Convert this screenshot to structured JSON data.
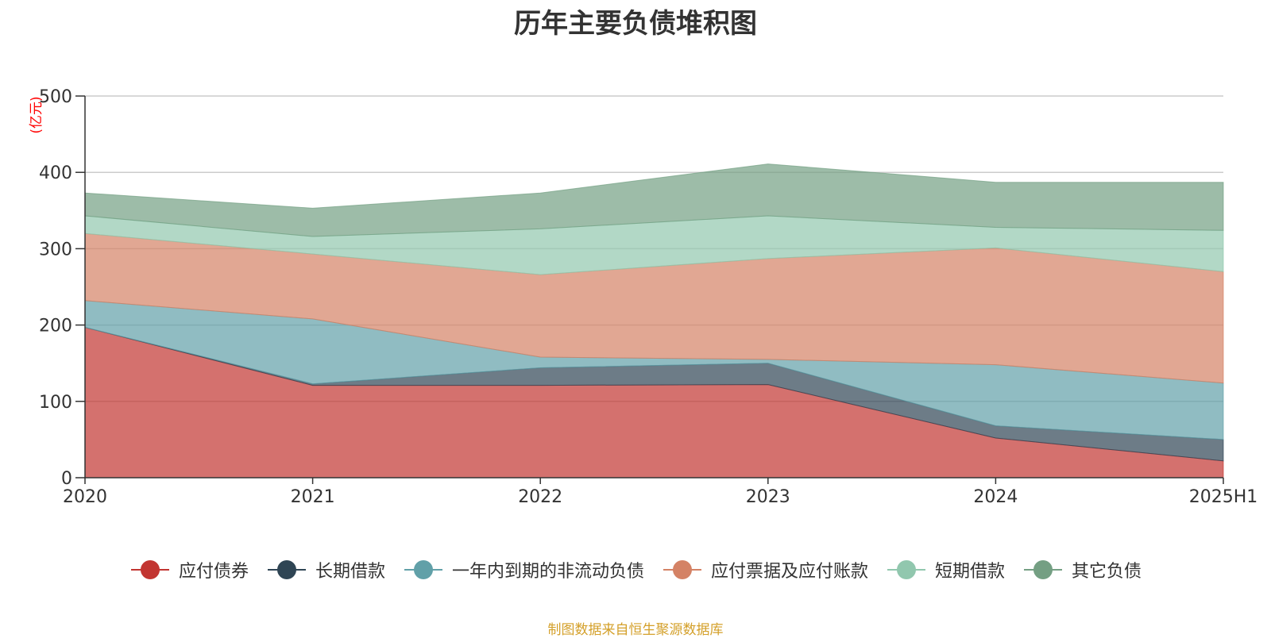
{
  "title": "历年主要负债堆积图",
  "unit_label": "(亿元)",
  "source_note": "制图数据来自恒生聚源数据库",
  "chart_data": {
    "type": "area",
    "stacked": true,
    "title": "历年主要负债堆积图",
    "ylabel": "(亿元)",
    "categories": [
      "2020",
      "2021",
      "2022",
      "2023",
      "2024",
      "2025H1"
    ],
    "ylim": [
      0,
      500
    ],
    "yticks": [
      0,
      100,
      200,
      300,
      400,
      500
    ],
    "grid": true,
    "legend_position": "bottom",
    "series": [
      {
        "name": "应付债券",
        "color": "#c23531",
        "values": [
          197,
          121,
          121,
          122,
          52,
          22
        ]
      },
      {
        "name": "长期借款",
        "color": "#2f4554",
        "values": [
          0,
          2,
          23,
          28,
          16,
          28
        ]
      },
      {
        "name": "一年内到期的非流动负债",
        "color": "#61a0a8",
        "values": [
          35,
          85,
          14,
          5,
          80,
          74
        ]
      },
      {
        "name": "应付票据及应付账款",
        "color": "#d48265",
        "values": [
          88,
          85,
          108,
          132,
          153,
          146
        ]
      },
      {
        "name": "短期借款",
        "color": "#91c7ae",
        "values": [
          23,
          23,
          60,
          56,
          27,
          54
        ]
      },
      {
        "name": "其它负债",
        "color": "#749f83",
        "values": [
          30,
          37,
          47,
          68,
          59,
          63
        ]
      }
    ]
  }
}
